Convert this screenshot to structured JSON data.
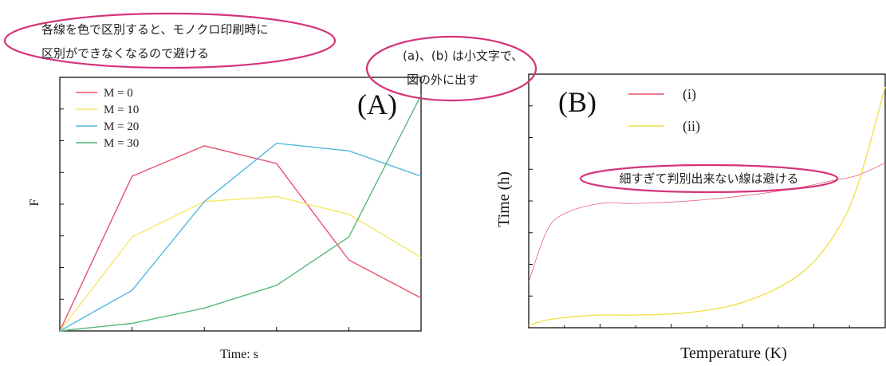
{
  "annotations": {
    "color_note_line1": "各線を色で区別すると、モノクロ印刷時に",
    "color_note_line2": "区別ができなくなるので避ける",
    "label_note_line1": "(a)、(b) は小文字で、",
    "label_note_line2": "図の外に出す",
    "thin_line_note": "細すぎて判別出来ない線は避ける",
    "ellipse_color": "#d5337a"
  },
  "chart_data": [
    {
      "type": "line",
      "panel_label": "(A)",
      "xlabel": "Time: s",
      "ylabel": "F",
      "x": [
        0,
        1,
        2,
        3,
        4,
        5
      ],
      "xlim": [
        0,
        5
      ],
      "ylim": [
        0,
        100
      ],
      "grid": false,
      "legend_position": "top-left",
      "series": [
        {
          "name": "M = 0",
          "color": "#e8506a",
          "values": [
            0,
            61,
            73,
            66,
            28,
            13
          ]
        },
        {
          "name": "M = 10",
          "color": "#f4e86a",
          "values": [
            0,
            37,
            51,
            53,
            46,
            29
          ]
        },
        {
          "name": "M = 20",
          "color": "#55b7e0",
          "values": [
            0,
            16,
            51,
            74,
            71,
            61
          ]
        },
        {
          "name": "M = 30",
          "color": "#57b87a",
          "values": [
            0,
            3,
            9,
            18,
            37,
            93
          ]
        }
      ]
    },
    {
      "type": "line",
      "panel_label": "(B)",
      "xlabel": "Temperature (K)",
      "ylabel": "Time (h)",
      "x": [
        0,
        0.05,
        0.1,
        0.2,
        0.3,
        0.45,
        0.6,
        0.75,
        0.85,
        0.92,
        1
      ],
      "xlim": [
        0,
        1
      ],
      "ylim": [
        0,
        1
      ],
      "grid": false,
      "legend_position": "top-left",
      "series": [
        {
          "name": "(i)",
          "color": "#e8506a",
          "stroke_width": 0.7,
          "values": [
            0.18,
            0.38,
            0.45,
            0.49,
            0.49,
            0.5,
            0.52,
            0.55,
            0.58,
            0.6,
            0.65
          ]
        },
        {
          "name": "(ii)",
          "color": "#f1e04a",
          "stroke_width": 1.4,
          "values": [
            0.01,
            0.03,
            0.04,
            0.05,
            0.05,
            0.06,
            0.1,
            0.2,
            0.35,
            0.55,
            0.95
          ]
        }
      ]
    }
  ]
}
